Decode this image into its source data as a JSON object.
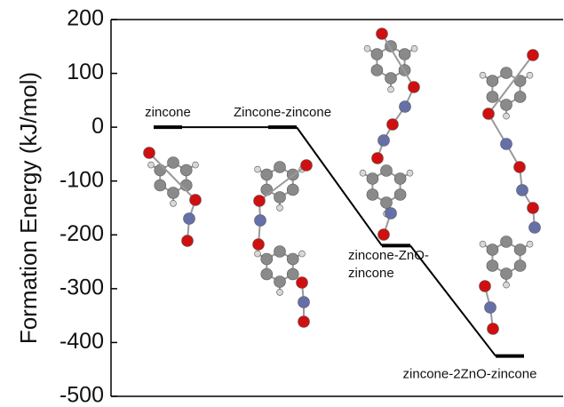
{
  "chart_data": {
    "type": "step",
    "y_label": "Formation Energy (kJ/mol)",
    "categories": [
      "zincone",
      "Zincone-zincone",
      "zincone-ZnO-zincone",
      "zincone-2ZnO-zincone"
    ],
    "values": [
      0,
      0,
      -220,
      -425
    ],
    "color": "#000000",
    "ylim": [
      -500,
      200
    ],
    "yticks": [
      -500,
      -400,
      -300,
      -200,
      -100,
      0,
      100,
      200
    ]
  }
}
